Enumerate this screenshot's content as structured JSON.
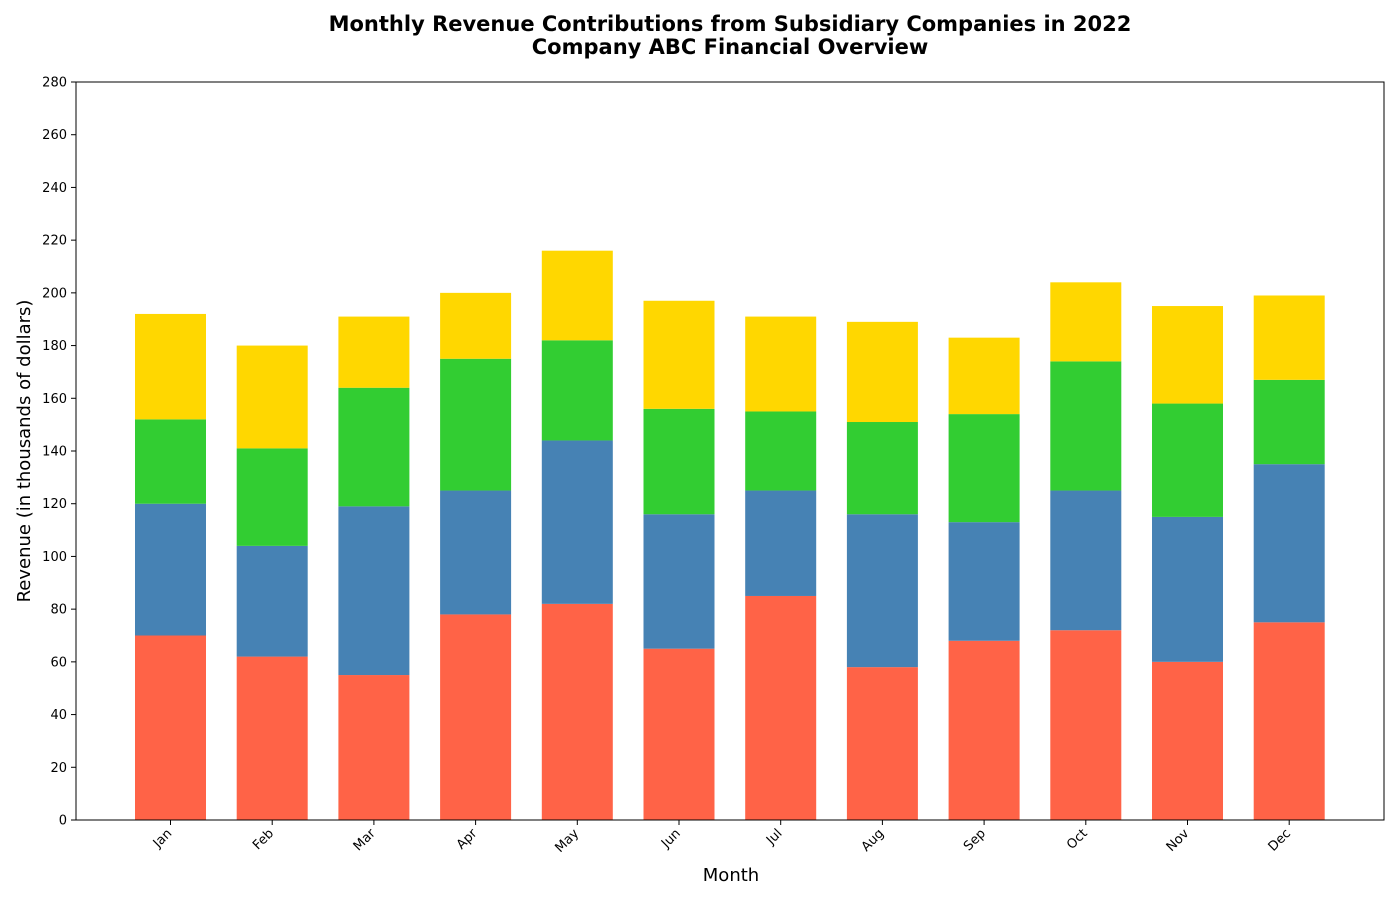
{
  "chart_data": {
    "type": "bar",
    "stacked": true,
    "title": "Monthly Revenue Contributions from Subsidiary Companies in 2022",
    "subtitle": "Company ABC Financial Overview",
    "xlabel": "Month",
    "ylabel": "Revenue (in thousands of dollars)",
    "ylim": [
      0,
      280
    ],
    "yticks": [
      0,
      20,
      40,
      60,
      80,
      100,
      120,
      140,
      160,
      180,
      200,
      220,
      240,
      260,
      280
    ],
    "categories": [
      "Jan",
      "Feb",
      "Mar",
      "Apr",
      "May",
      "Jun",
      "Jul",
      "Aug",
      "Sep",
      "Oct",
      "Nov",
      "Dec"
    ],
    "grid": false,
    "series": [
      {
        "color": "#FF6347",
        "values": [
          70,
          62,
          55,
          78,
          82,
          65,
          85,
          58,
          68,
          72,
          60,
          75
        ]
      },
      {
        "color": "#4682B4",
        "values": [
          50,
          42,
          64,
          47,
          62,
          51,
          40,
          58,
          45,
          53,
          55,
          60
        ]
      },
      {
        "color": "#32CD32",
        "values": [
          32,
          37,
          45,
          50,
          38,
          40,
          30,
          35,
          41,
          49,
          43,
          32
        ]
      },
      {
        "color": "#FFD700",
        "values": [
          40,
          39,
          27,
          25,
          34,
          41,
          36,
          38,
          29,
          30,
          37,
          32
        ]
      }
    ]
  }
}
